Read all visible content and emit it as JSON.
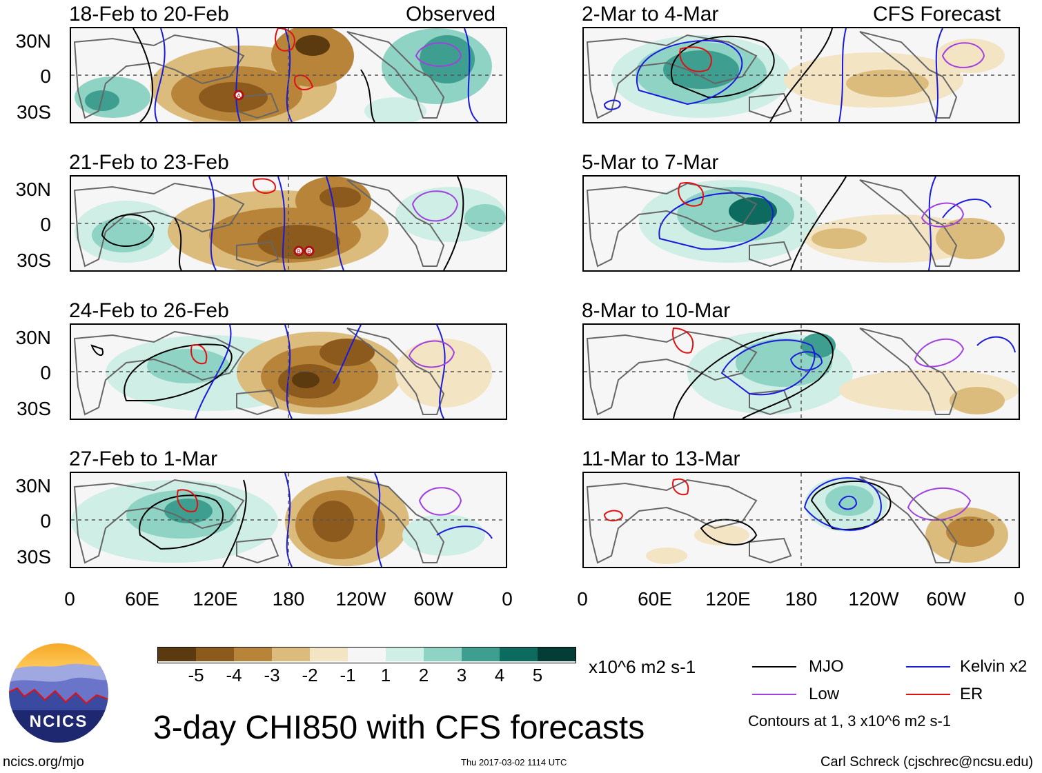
{
  "panels_left": [
    {
      "date": "18-Feb to 20-Feb",
      "tag": "Observed"
    },
    {
      "date": "21-Feb to 23-Feb",
      "tag": ""
    },
    {
      "date": "24-Feb to 26-Feb",
      "tag": ""
    },
    {
      "date": "27-Feb to 1-Mar",
      "tag": ""
    }
  ],
  "panels_right": [
    {
      "date": "2-Mar to 4-Mar",
      "tag": "CFS Forecast"
    },
    {
      "date": "5-Mar to 7-Mar",
      "tag": ""
    },
    {
      "date": "8-Mar to 10-Mar",
      "tag": ""
    },
    {
      "date": "11-Mar to 13-Mar",
      "tag": ""
    }
  ],
  "lat_labels": [
    "30N",
    "0",
    "30S"
  ],
  "lon_labels": [
    "0",
    "60E",
    "120E",
    "180",
    "120W",
    "60W",
    "0"
  ],
  "colorbar": {
    "labels": [
      "-5",
      "-4",
      "-3",
      "-2",
      "-1",
      "1",
      "2",
      "3",
      "4",
      "5"
    ],
    "colors": [
      "#5a3a0e",
      "#8c5a1d",
      "#b8843a",
      "#dcbc7c",
      "#f3e4c4",
      "#f6f6f6",
      "#cfeee5",
      "#8fd3c4",
      "#3e9e8f",
      "#0c6a5e",
      "#033d36"
    ],
    "units": "x10^6 m2 s-1"
  },
  "legend": {
    "mjo": "MJO",
    "kelvin": "Kelvin x2",
    "low": "Low",
    "er": "ER",
    "contours_note": "Contours at 1, 3 x10^6 m2 s-1",
    "colors": {
      "mjo": "#000000",
      "kelvin": "#1a1adc",
      "low": "#a040e0",
      "er": "#e01010"
    }
  },
  "logo_text": "NCICS",
  "main_title": "3-day CHI850 with CFS forecasts",
  "footer": {
    "left": "ncics.org/mjo",
    "center": "Thu 2017-03-02 1114 UTC",
    "right": "Carl Schreck (cjschrec@ncsu.edu)"
  },
  "storm_markers": [
    "A",
    "B",
    "B"
  ]
}
